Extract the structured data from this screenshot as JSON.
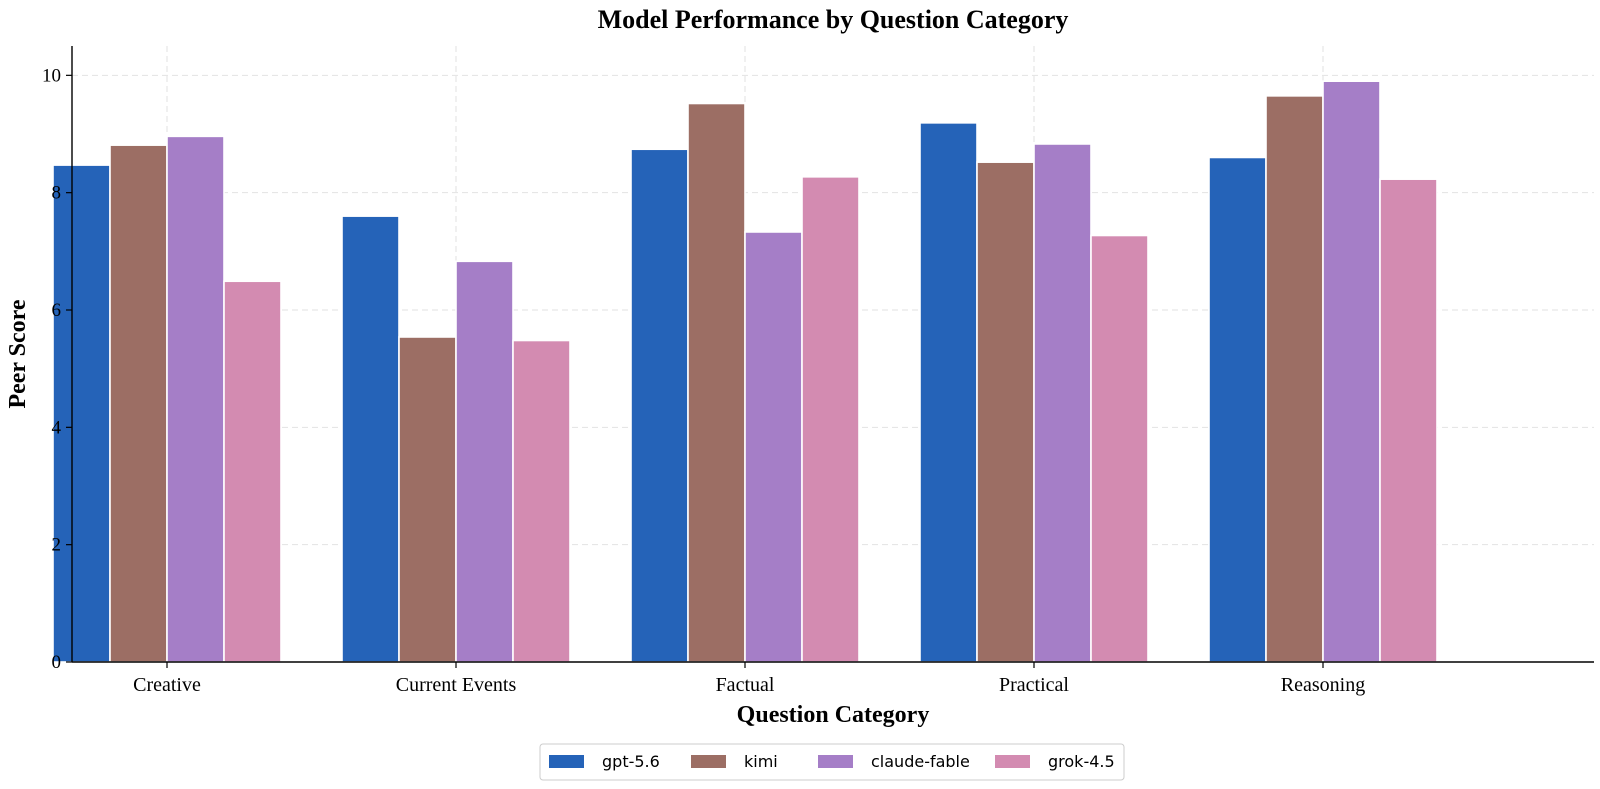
{
  "chart_data": {
    "type": "bar",
    "title": "Model Performance by Question Category",
    "xlabel": "Question Category",
    "ylabel": "Peer Score",
    "categories": [
      "Creative",
      "Current Events",
      "Factual",
      "Practical",
      "Reasoning"
    ],
    "series": [
      {
        "name": "gpt-5.6",
        "color": "#2563b8",
        "values": [
          8.47,
          7.6,
          8.74,
          9.19,
          8.6
        ]
      },
      {
        "name": "kimi",
        "color": "#9c6e64",
        "values": [
          8.81,
          5.54,
          9.52,
          8.52,
          9.65
        ]
      },
      {
        "name": "claude-fable",
        "color": "#a57ec7",
        "values": [
          8.96,
          6.83,
          7.33,
          8.83,
          9.9
        ]
      },
      {
        "name": "grok-4.5",
        "color": "#d38bb1",
        "values": [
          6.49,
          5.48,
          8.27,
          7.27,
          8.23
        ]
      }
    ],
    "ylim": [
      0,
      10.5
    ],
    "yticks": [
      0,
      2,
      4,
      6,
      8,
      10
    ],
    "grid": true,
    "legend": "bottom-center"
  }
}
